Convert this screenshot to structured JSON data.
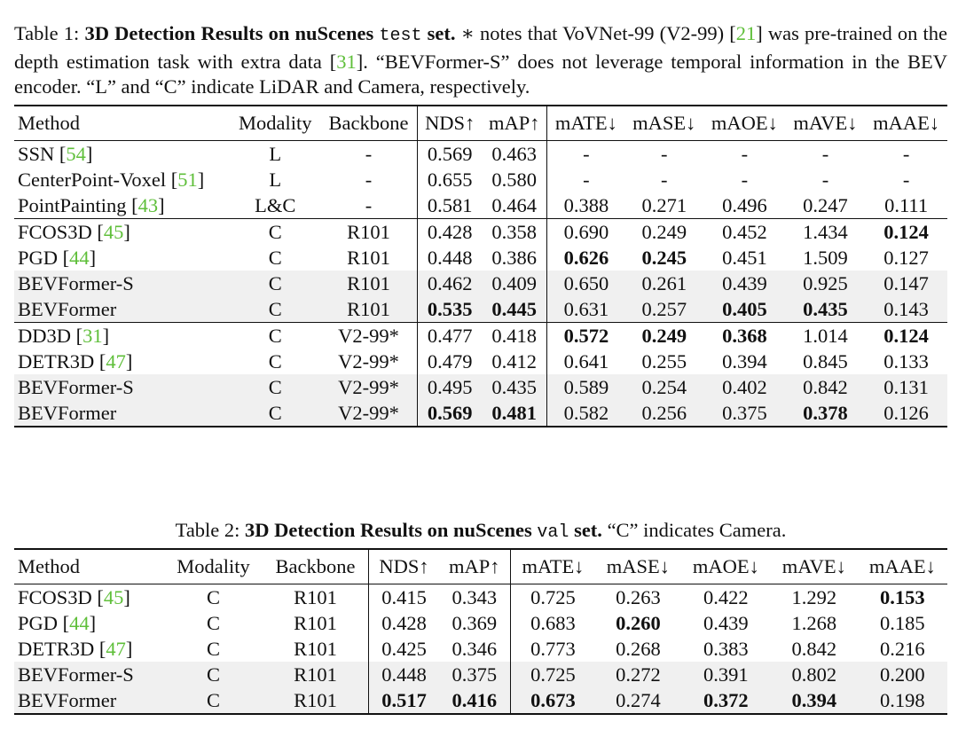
{
  "table1": {
    "caption_prefix": "Table 1: ",
    "caption_bold1": "3D Detection Results on nuScenes ",
    "caption_mono": "test",
    "caption_bold2": " set.",
    "caption_rest_a": " ∗ notes that VoVNet-99 (V2-99) [",
    "caption_ref1": "21",
    "caption_rest_b": "] was pre-trained on the depth estimation task with extra data [",
    "caption_ref2": "31",
    "caption_rest_c": "]. “BEVFormer-S” does not leverage temporal information in the BEV encoder. “L” and “C” indicate LiDAR and Camera, respectively.",
    "headers": [
      "Method",
      "Modality",
      "Backbone",
      "NDS↑",
      "mAP↑",
      "mATE↓",
      "mASE↓",
      "mAOE↓",
      "mAVE↓",
      "mAAE↓"
    ],
    "groups": [
      [
        {
          "method": "SSN",
          "ref": "54",
          "modality": "L",
          "backbone": "-",
          "vals": [
            "0.569",
            "0.463",
            "-",
            "-",
            "-",
            "-",
            "-"
          ],
          "bold": []
        },
        {
          "method": "CenterPoint-Voxel",
          "ref": "51",
          "modality": "L",
          "backbone": "-",
          "vals": [
            "0.655",
            "0.580",
            "-",
            "-",
            "-",
            "-",
            "-"
          ],
          "bold": []
        },
        {
          "method": "PointPainting",
          "ref": "43",
          "modality": "L&C",
          "backbone": "-",
          "vals": [
            "0.581",
            "0.464",
            "0.388",
            "0.271",
            "0.496",
            "0.247",
            "0.111"
          ],
          "bold": []
        }
      ],
      [
        {
          "method": "FCOS3D",
          "ref": "45",
          "modality": "C",
          "backbone": "R101",
          "vals": [
            "0.428",
            "0.358",
            "0.690",
            "0.249",
            "0.452",
            "1.434",
            "0.124"
          ],
          "bold": [
            6
          ]
        },
        {
          "method": "PGD",
          "ref": "44",
          "modality": "C",
          "backbone": "R101",
          "vals": [
            "0.448",
            "0.386",
            "0.626",
            "0.245",
            "0.451",
            "1.509",
            "0.127"
          ],
          "bold": [
            2,
            3
          ]
        },
        {
          "method": "BEVFormer-S",
          "ref": "",
          "modality": "C",
          "backbone": "R101",
          "vals": [
            "0.462",
            "0.409",
            "0.650",
            "0.261",
            "0.439",
            "0.925",
            "0.147"
          ],
          "bold": [],
          "shade": true
        },
        {
          "method": "BEVFormer",
          "ref": "",
          "modality": "C",
          "backbone": "R101",
          "vals": [
            "0.535",
            "0.445",
            "0.631",
            "0.257",
            "0.405",
            "0.435",
            "0.143"
          ],
          "bold": [
            0,
            1,
            4,
            5
          ],
          "shade": true
        }
      ],
      [
        {
          "method": "DD3D",
          "ref": "31",
          "modality": "C",
          "backbone": "V2-99*",
          "vals": [
            "0.477",
            "0.418",
            "0.572",
            "0.249",
            "0.368",
            "1.014",
            "0.124"
          ],
          "bold": [
            2,
            3,
            4,
            6
          ]
        },
        {
          "method": "DETR3D",
          "ref": "47",
          "modality": "C",
          "backbone": "V2-99*",
          "vals": [
            "0.479",
            "0.412",
            "0.641",
            "0.255",
            "0.394",
            "0.845",
            "0.133"
          ],
          "bold": []
        },
        {
          "method": "BEVFormer-S",
          "ref": "",
          "modality": "C",
          "backbone": "V2-99*",
          "vals": [
            "0.495",
            "0.435",
            "0.589",
            "0.254",
            "0.402",
            "0.842",
            "0.131"
          ],
          "bold": [],
          "shade": true
        },
        {
          "method": "BEVFormer",
          "ref": "",
          "modality": "C",
          "backbone": "V2-99*",
          "vals": [
            "0.569",
            "0.481",
            "0.582",
            "0.256",
            "0.375",
            "0.378",
            "0.126"
          ],
          "bold": [
            0,
            1,
            5
          ],
          "shade": true
        }
      ]
    ]
  },
  "table2": {
    "caption_prefix": "Table 2: ",
    "caption_bold1": "3D Detection Results on nuScenes ",
    "caption_mono": "val",
    "caption_bold2": " set.",
    "caption_rest": " “C” indicates Camera.",
    "headers": [
      "Method",
      "Modality",
      "Backbone",
      "NDS↑",
      "mAP↑",
      "mATE↓",
      "mASE↓",
      "mAOE↓",
      "mAVE↓",
      "mAAE↓"
    ],
    "rows": [
      {
        "method": "FCOS3D",
        "ref": "45",
        "modality": "C",
        "backbone": "R101",
        "vals": [
          "0.415",
          "0.343",
          "0.725",
          "0.263",
          "0.422",
          "1.292",
          "0.153"
        ],
        "bold": [
          6
        ]
      },
      {
        "method": "PGD",
        "ref": "44",
        "modality": "C",
        "backbone": "R101",
        "vals": [
          "0.428",
          "0.369",
          "0.683",
          "0.260",
          "0.439",
          "1.268",
          "0.185"
        ],
        "bold": [
          3
        ]
      },
      {
        "method": "DETR3D",
        "ref": "47",
        "modality": "C",
        "backbone": "R101",
        "vals": [
          "0.425",
          "0.346",
          "0.773",
          "0.268",
          "0.383",
          "0.842",
          "0.216"
        ],
        "bold": []
      },
      {
        "method": "BEVFormer-S",
        "ref": "",
        "modality": "C",
        "backbone": "R101",
        "vals": [
          "0.448",
          "0.375",
          "0.725",
          "0.272",
          "0.391",
          "0.802",
          "0.200"
        ],
        "bold": [],
        "shade": true
      },
      {
        "method": "BEVFormer",
        "ref": "",
        "modality": "C",
        "backbone": "R101",
        "vals": [
          "0.517",
          "0.416",
          "0.673",
          "0.274",
          "0.372",
          "0.394",
          "0.198"
        ],
        "bold": [
          0,
          1,
          2,
          4,
          5
        ],
        "shade": true
      }
    ]
  }
}
